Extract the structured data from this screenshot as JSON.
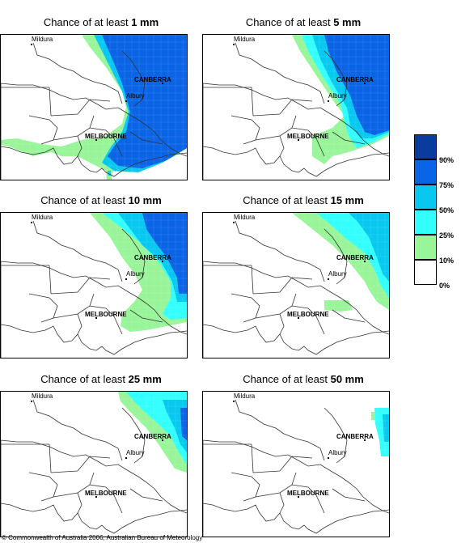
{
  "panels": [
    {
      "title_prefix": "Chance of at least ",
      "amount": "1 mm"
    },
    {
      "title_prefix": "Chance of at least ",
      "amount": "5 mm"
    },
    {
      "title_prefix": "Chance of at least ",
      "amount": "10 mm"
    },
    {
      "title_prefix": "Chance of at least ",
      "amount": "15 mm"
    },
    {
      "title_prefix": "Chance of at least ",
      "amount": "25 mm"
    },
    {
      "title_prefix": "Chance of at least ",
      "amount": "50 mm"
    }
  ],
  "cities": {
    "mildura": "Mildura",
    "canberra": "CANBERRA",
    "albury": "Albury",
    "melbourne": "MELBOURNE"
  },
  "legend": {
    "bands": [
      {
        "range": "90-100%",
        "color": "#0a3c9e"
      },
      {
        "range": "75-90%",
        "color": "#0a64e6"
      },
      {
        "range": "50-75%",
        "color": "#08c8f0"
      },
      {
        "range": "25-50%",
        "color": "#33ffff"
      },
      {
        "range": "10-25%",
        "color": "#99f599"
      },
      {
        "range": "0-10%",
        "color": "#ffffff"
      }
    ],
    "labels": [
      "90%",
      "75%",
      "50%",
      "25%",
      "10%",
      "0%"
    ]
  },
  "copyright": "© Commonwealth of Australia 2006, Australian Bureau of Meteorology"
}
